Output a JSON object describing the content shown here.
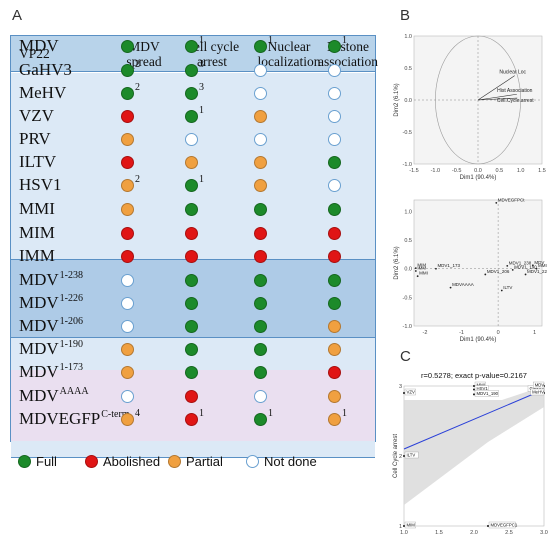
{
  "panels": {
    "a": "A",
    "b": "B",
    "c": "C"
  },
  "table": {
    "header": {
      "corner": "VP22",
      "col1": "MDV spread",
      "col2": "Cell cycle arrest",
      "col3": "Nuclear localization",
      "col4": "Histone association"
    },
    "rows": [
      {
        "label": "MDV",
        "sup": "",
        "cells": [
          [
            "full",
            ""
          ],
          [
            "full",
            "1"
          ],
          [
            "full",
            "1"
          ],
          [
            "full",
            "1"
          ]
        ]
      },
      {
        "label": "GaHV3",
        "sup": "",
        "cells": [
          [
            "full",
            "2"
          ],
          [
            "full",
            "3"
          ],
          [
            "notdone",
            ""
          ],
          [
            "notdone",
            ""
          ]
        ]
      },
      {
        "label": "MeHV",
        "sup": "",
        "cells": [
          [
            "full",
            "2"
          ],
          [
            "full",
            "3"
          ],
          [
            "notdone",
            ""
          ],
          [
            "notdone",
            ""
          ]
        ]
      },
      {
        "label": "VZV",
        "sup": "",
        "cells": [
          [
            "abolished",
            ""
          ],
          [
            "full",
            "1"
          ],
          [
            "partial",
            ""
          ],
          [
            "notdone",
            ""
          ]
        ]
      },
      {
        "label": "PRV",
        "sup": "",
        "cells": [
          [
            "partial",
            ""
          ],
          [
            "notdone",
            ""
          ],
          [
            "notdone",
            ""
          ],
          [
            "notdone",
            ""
          ]
        ]
      },
      {
        "label": "ILTV",
        "sup": "",
        "cells": [
          [
            "abolished",
            ""
          ],
          [
            "partial",
            ""
          ],
          [
            "partial",
            ""
          ],
          [
            "full",
            ""
          ]
        ]
      },
      {
        "label": "HSV1",
        "sup": "",
        "cells": [
          [
            "partial",
            "2"
          ],
          [
            "full",
            "1"
          ],
          [
            "partial",
            ""
          ],
          [
            "notdone",
            ""
          ]
        ]
      },
      {
        "label": "MMI",
        "sup": "",
        "cells": [
          [
            "partial",
            ""
          ],
          [
            "full",
            ""
          ],
          [
            "full",
            ""
          ],
          [
            "full",
            ""
          ]
        ]
      },
      {
        "label": "MIM",
        "sup": "",
        "cells": [
          [
            "abolished",
            ""
          ],
          [
            "abolished",
            ""
          ],
          [
            "abolished",
            ""
          ],
          [
            "abolished",
            ""
          ]
        ]
      },
      {
        "label": "IMM",
        "sup": "",
        "cells": [
          [
            "abolished",
            ""
          ],
          [
            "abolished",
            ""
          ],
          [
            "abolished",
            ""
          ],
          [
            "abolished",
            ""
          ]
        ]
      },
      {
        "label": "MDV",
        "sup": "1-238",
        "cells": [
          [
            "notdone",
            ""
          ],
          [
            "full",
            ""
          ],
          [
            "full",
            ""
          ],
          [
            "full",
            ""
          ]
        ]
      },
      {
        "label": "MDV",
        "sup": "1-226",
        "cells": [
          [
            "notdone",
            ""
          ],
          [
            "full",
            ""
          ],
          [
            "full",
            ""
          ],
          [
            "full",
            ""
          ]
        ]
      },
      {
        "label": "MDV",
        "sup": "1-206",
        "cells": [
          [
            "notdone",
            ""
          ],
          [
            "full",
            ""
          ],
          [
            "full",
            ""
          ],
          [
            "partial",
            ""
          ]
        ]
      },
      {
        "label": "MDV",
        "sup": "1-190",
        "cells": [
          [
            "partial",
            ""
          ],
          [
            "full",
            ""
          ],
          [
            "full",
            ""
          ],
          [
            "partial",
            ""
          ]
        ]
      },
      {
        "label": "MDV",
        "sup": "1-173",
        "cells": [
          [
            "partial",
            ""
          ],
          [
            "full",
            ""
          ],
          [
            "full",
            ""
          ],
          [
            "abolished",
            ""
          ]
        ]
      },
      {
        "label": "MDV",
        "sup": "AAAA",
        "cells": [
          [
            "notdone",
            ""
          ],
          [
            "abolished",
            ""
          ],
          [
            "notdone",
            ""
          ],
          [
            "partial",
            ""
          ]
        ]
      },
      {
        "label": "MDVEGFP",
        "sup": "C-term",
        "cells": [
          [
            "partial",
            "4"
          ],
          [
            "abolished",
            "1"
          ],
          [
            "full",
            "1"
          ],
          [
            "partial",
            "1"
          ]
        ]
      }
    ],
    "legend": [
      {
        "status": "full",
        "label": "Full"
      },
      {
        "status": "abolished",
        "label": "Abolished"
      },
      {
        "status": "partial",
        "label": "Partial"
      },
      {
        "status": "notdone",
        "label": "Not done"
      }
    ],
    "colors": {
      "full": "#1c8a2a",
      "abolished": "#e01515",
      "partial": "#f0a040",
      "notdone": "#ffffff",
      "group_a": "#dce9f6",
      "group_b": "#aecbe7",
      "group_d": "#eadff0"
    }
  },
  "chart_data": [
    {
      "type": "scatter",
      "title": "",
      "xlabel": "Dim1 (90.4%)",
      "ylabel": "Dim2 (6.1%)",
      "xlim": [
        -1.5,
        1.5
      ],
      "ylim": [
        -1.0,
        1.0
      ],
      "x_ticks": [
        "-1.5",
        "-1.0",
        "-0.5",
        "0.0",
        "0.5",
        "1.0",
        "1.5"
      ],
      "y_ticks": [
        "1.0",
        "0.5",
        "0.0",
        "-0.5",
        "-1.0"
      ],
      "arrows": [
        {
          "label": "Nuclear Loc",
          "x": 0.86,
          "y": 0.38
        },
        {
          "label": "Hist Association",
          "x": 0.91,
          "y": 0.09
        },
        {
          "label": "Cell.Cycle.arrest",
          "x": 0.92,
          "y": 0.03
        }
      ]
    },
    {
      "type": "scatter",
      "title": "",
      "xlabel": "Dim1 (90.4%)",
      "ylabel": "Dim2 (6.1%)",
      "xlim": [
        -2.3,
        1.2
      ],
      "ylim": [
        -1.0,
        1.2
      ],
      "x_ticks": [
        "-2",
        "-1",
        "0",
        "1"
      ],
      "y_ticks": [
        "1.0",
        "0.5",
        "0.0",
        "-0.5",
        "-1.0"
      ],
      "points": [
        {
          "label": "MDVEGFPCt",
          "x": -0.05,
          "y": 1.15
        },
        {
          "label": "MIM",
          "x": -2.25,
          "y": 0.01
        },
        {
          "label": "IMM",
          "x": -2.25,
          "y": -0.04
        },
        {
          "label": "MMI",
          "x": -2.2,
          "y": -0.13
        },
        {
          "label": "MDV1_173",
          "x": -1.7,
          "y": 0.0
        },
        {
          "label": "MDVAAAA",
          "x": -1.3,
          "y": -0.33
        },
        {
          "label": "MDV1_206",
          "x": -0.35,
          "y": -0.1
        },
        {
          "label": "ILTV",
          "x": 0.1,
          "y": -0.38
        },
        {
          "label": "MDV1_238",
          "x": 0.25,
          "y": 0.05
        },
        {
          "label": "MDV1_190",
          "x": 0.4,
          "y": -0.02
        },
        {
          "label": "MDV1_226",
          "x": 0.75,
          "y": -0.1
        },
        {
          "label": "MDV",
          "x": 0.95,
          "y": 0.06
        },
        {
          "label": "MMI",
          "x": 1.05,
          "y": 0.0
        }
      ]
    },
    {
      "type": "scatter",
      "title": "r=0.5278; exact p-value=0.2167",
      "xlabel": "MDV Spread",
      "ylabel": "Cell Cycle arrest",
      "xlim": [
        1.0,
        3.0
      ],
      "ylim": [
        1.0,
        3.0
      ],
      "x_ticks": [
        "1.0",
        "1.5",
        "2.0",
        "2.5",
        "3.0"
      ],
      "y_ticks": [
        "3",
        "2",
        "1"
      ],
      "points": [
        {
          "label": "VZV",
          "x": 1.0,
          "y": 2.9
        },
        {
          "label": "ILTV",
          "x": 1.0,
          "y": 2.0
        },
        {
          "label": "MIM",
          "x": 1.0,
          "y": 1.0
        },
        {
          "label": "MMI",
          "x": 2.0,
          "y": 3.0
        },
        {
          "label": "HSV1",
          "x": 2.0,
          "y": 2.95
        },
        {
          "label": "MDV1_190",
          "x": 2.0,
          "y": 2.88
        },
        {
          "label": "GaHV3",
          "x": 2.8,
          "y": 2.95
        },
        {
          "label": "MDV",
          "x": 3.0,
          "y": 3.0
        },
        {
          "label": "MeHV",
          "x": 3.0,
          "y": 2.9
        },
        {
          "label": "MDVEGFPC1",
          "x": 2.2,
          "y": 1.0
        }
      ],
      "fit_line": {
        "x": [
          1.0,
          3.0
        ],
        "y": [
          2.1,
          2.95
        ]
      }
    }
  ]
}
